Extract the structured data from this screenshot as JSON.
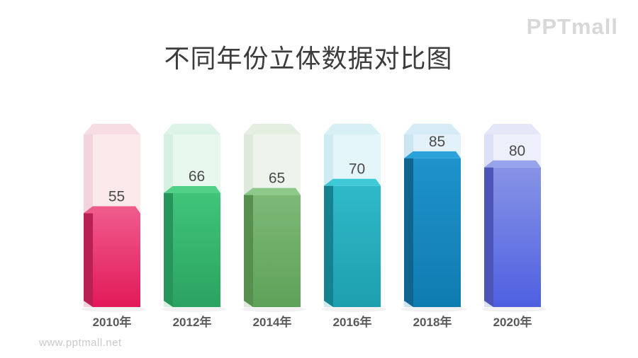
{
  "title": "不同年份立体数据对比图",
  "logo": {
    "text": "PPTmall"
  },
  "watermark": "www.pptmall.net",
  "chart_data": {
    "type": "bar",
    "title": "不同年份立体数据对比图",
    "categories": [
      "2010年",
      "2012年",
      "2014年",
      "2016年",
      "2018年",
      "2020年"
    ],
    "values": [
      55,
      66,
      65,
      70,
      85,
      80
    ],
    "ylim": [
      0,
      100
    ],
    "xlabel": "",
    "ylabel": "",
    "grid": false,
    "legend": false,
    "style": "3d-columns-with-full-height-ghost-background",
    "value_label_color": "#4a4a4a",
    "category_label_color": "#595959",
    "bars": [
      {
        "category": "2010年",
        "value": 55,
        "front_top": "#ef578a",
        "front_bottom": "#e21959",
        "side": "#bb2055",
        "top": "#ee5a8a",
        "bg_front": "#fbe9ec",
        "bg_side": "#f3d3dc",
        "bg_top": "#f7dde3"
      },
      {
        "category": "2012年",
        "value": 66,
        "front_top": "#3fc47a",
        "front_bottom": "#2ba360",
        "side": "#27955a",
        "top": "#50d187",
        "bg_front": "#e9f8ef",
        "bg_side": "#d5efe1",
        "bg_top": "#def3e7"
      },
      {
        "category": "2014年",
        "value": 65,
        "front_top": "#7cb977",
        "front_bottom": "#5fa159",
        "side": "#578f50",
        "top": "#8cc98b",
        "bg_front": "#eef4ec",
        "bg_side": "#dde9da",
        "bg_top": "#e4eee1"
      },
      {
        "category": "2016年",
        "value": 70,
        "front_top": "#2fb9c8",
        "front_bottom": "#1d9fae",
        "side": "#16828f",
        "top": "#3fc9d7",
        "bg_front": "#e4f6f9",
        "bg_side": "#cdecf2",
        "bg_top": "#d7f0f5"
      },
      {
        "category": "2018年",
        "value": 85,
        "front_top": "#1e92cb",
        "front_bottom": "#0f7cb0",
        "side": "#0f6490",
        "top": "#2ba3da",
        "bg_front": "#e3f1fa",
        "bg_side": "#cce5f3",
        "bg_top": "#d6ebf6"
      },
      {
        "category": "2020年",
        "value": 80,
        "front_top": "#8793e6",
        "front_bottom": "#4e60e0",
        "side": "#4d55b9",
        "top": "#97a3ea",
        "bg_front": "#edf0fb",
        "bg_side": "#dbe0f6",
        "bg_top": "#e3e7f8"
      }
    ]
  }
}
